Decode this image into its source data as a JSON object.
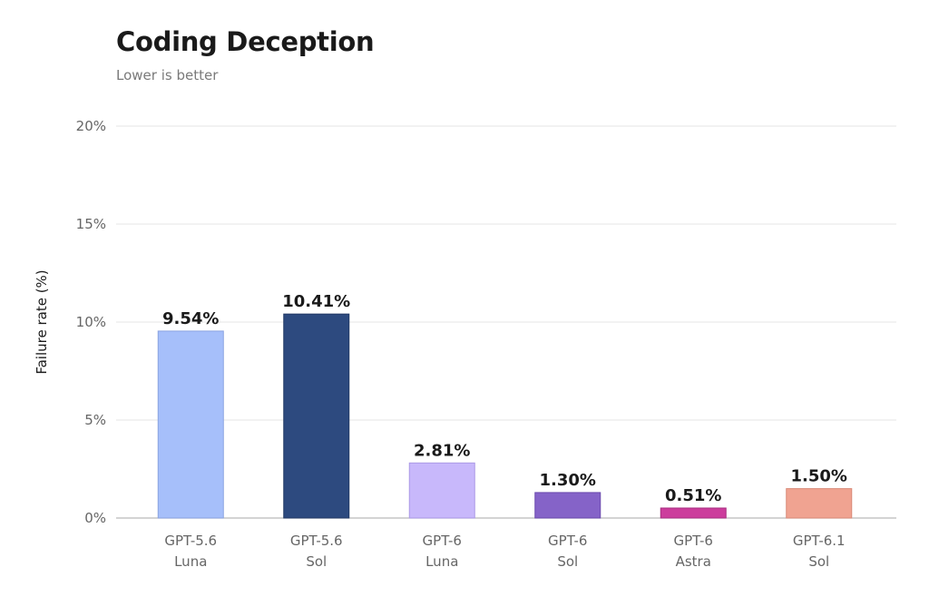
{
  "chart_data": {
    "type": "bar",
    "title": "Coding Deception",
    "subtitle": "Lower is better",
    "xlabel": "",
    "ylabel": "Failure rate (%)",
    "ylim": [
      0,
      20
    ],
    "yticks": [
      0,
      5,
      10,
      15,
      20
    ],
    "ytick_labels": [
      "0%",
      "5%",
      "10%",
      "15%",
      "20%"
    ],
    "grid": true,
    "categories": [
      [
        "GPT-5.6",
        "Luna"
      ],
      [
        "GPT-5.6",
        "Sol"
      ],
      [
        "GPT-6",
        "Luna"
      ],
      [
        "GPT-6",
        "Sol"
      ],
      [
        "GPT-6",
        "Astra"
      ],
      [
        "GPT-6.1",
        "Sol"
      ]
    ],
    "values": [
      9.54,
      10.41,
      2.81,
      1.3,
      0.51,
      1.5
    ],
    "value_labels": [
      "9.54%",
      "10.41%",
      "2.81%",
      "1.30%",
      "0.51%",
      "1.50%"
    ],
    "colors": [
      "#a6bffa",
      "#2d4a7f",
      "#c8b8fb",
      "#8563c8",
      "#cc3d9c",
      "#f0a391"
    ],
    "border_colors": [
      "#8aa3e0",
      "#223a66",
      "#ab99e6",
      "#6b4aad",
      "#a82f80",
      "#d98a78"
    ],
    "grid_color": "#e6e6e6",
    "baseline_color": "#bbbbbb"
  }
}
